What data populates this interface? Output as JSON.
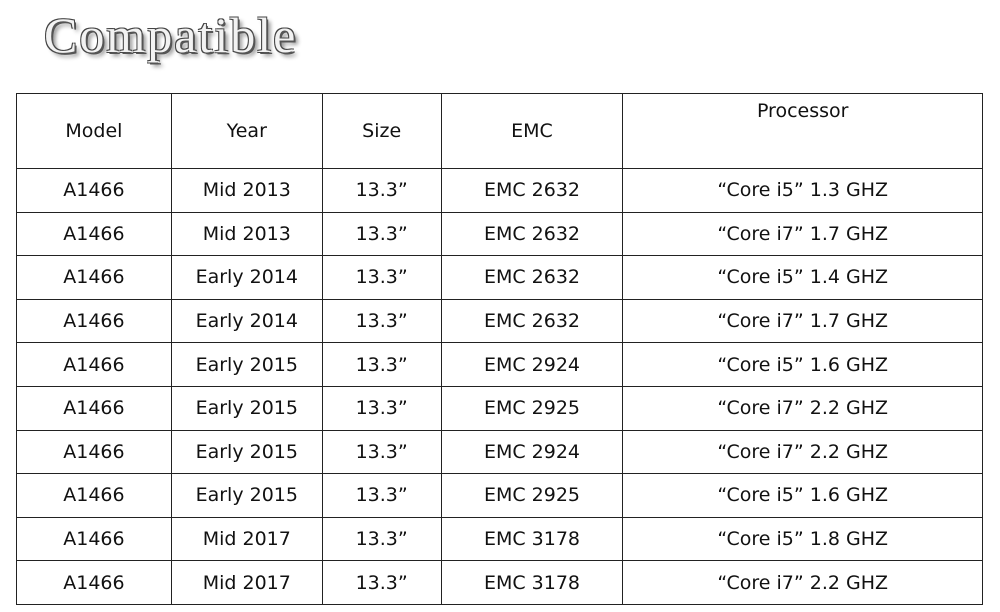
{
  "title": "Compatible",
  "table": {
    "header": [
      "Model",
      "Year",
      "Size",
      "EMC",
      "Processor"
    ],
    "rows": [
      [
        "A1466",
        "Mid 2013",
        "13.3”",
        "EMC 2632",
        "“Core i5” 1.3 GHZ"
      ],
      [
        "A1466",
        "Mid 2013",
        "13.3”",
        "EMC 2632",
        "“Core i7” 1.7 GHZ"
      ],
      [
        "A1466",
        "Early 2014",
        "13.3”",
        "EMC 2632",
        "“Core i5” 1.4 GHZ"
      ],
      [
        "A1466",
        "Early 2014",
        "13.3”",
        "EMC 2632",
        "“Core i7” 1.7 GHZ"
      ],
      [
        "A1466",
        "Early 2015",
        "13.3”",
        "EMC 2924",
        "“Core i5” 1.6 GHZ"
      ],
      [
        "A1466",
        "Early 2015",
        "13.3”",
        "EMC 2925",
        "“Core i7” 2.2 GHZ"
      ],
      [
        "A1466",
        "Early 2015",
        "13.3”",
        "EMC 2924",
        "“Core i7” 2.2 GHZ"
      ],
      [
        "A1466",
        "Early 2015",
        "13.3”",
        "EMC 2925",
        "“Core i5” 1.6 GHZ"
      ],
      [
        "A1466",
        "Mid 2017",
        "13.3”",
        "EMC 3178",
        "“Core i5” 1.8 GHZ"
      ],
      [
        "A1466",
        "Mid 2017",
        "13.3”",
        "EMC 3178",
        "“Core i7” 2.2 GHZ"
      ]
    ]
  }
}
